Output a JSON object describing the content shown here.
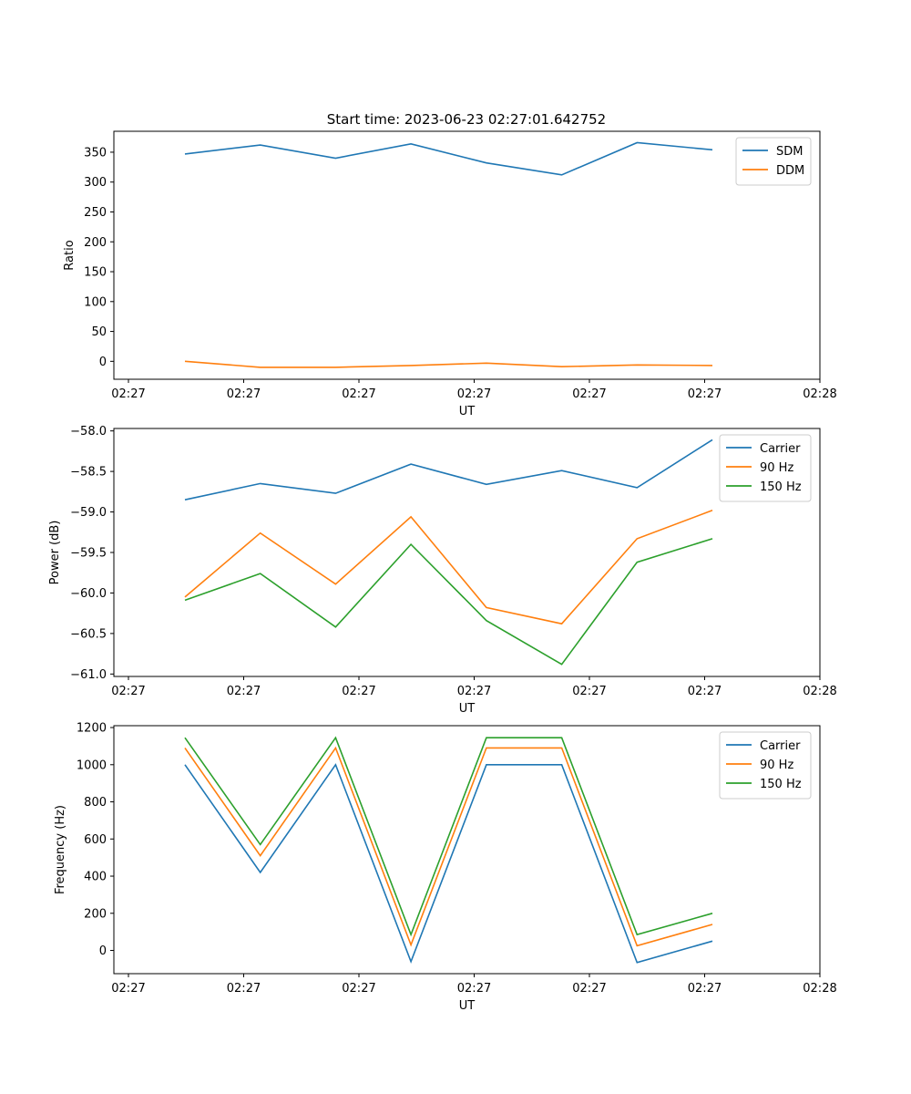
{
  "figure_title": "Start time: 2023-06-23 02:27:01.642752",
  "colors": {
    "blue": "#1f77b4",
    "orange": "#ff7f0e",
    "green": "#2ca02c"
  },
  "x_tick_labels": [
    "02:27",
    "02:27",
    "02:27",
    "02:27",
    "02:27",
    "02:27",
    "02:28"
  ],
  "chart_data": [
    {
      "type": "line",
      "title": "Start time: 2023-06-23 02:27:01.642752",
      "xlabel": "UT",
      "ylabel": "Ratio",
      "ylim": [
        -30,
        385
      ],
      "yticks": [
        0,
        50,
        100,
        150,
        200,
        250,
        300,
        350
      ],
      "legend_position": "upper-right",
      "x": [
        1,
        2,
        3,
        4,
        5,
        6,
        7,
        8
      ],
      "series": [
        {
          "name": "SDM",
          "color": "#1f77b4",
          "values": [
            347,
            362,
            340,
            364,
            332,
            312,
            366,
            354
          ]
        },
        {
          "name": "DDM",
          "color": "#ff7f0e",
          "values": [
            0,
            -10,
            -10,
            -7,
            -3,
            -9,
            -6,
            -7
          ]
        }
      ]
    },
    {
      "type": "line",
      "xlabel": "UT",
      "ylabel": "Power (dB)",
      "ylim": [
        -61.03,
        -57.97
      ],
      "yticks": [
        -61.0,
        -60.5,
        -60.0,
        -59.5,
        -59.0,
        -58.5,
        -58.0
      ],
      "legend_position": "upper-right",
      "x": [
        1,
        2,
        3,
        4,
        5,
        6,
        7,
        8
      ],
      "series": [
        {
          "name": "Carrier",
          "color": "#1f77b4",
          "values": [
            -58.85,
            -58.65,
            -58.77,
            -58.41,
            -58.66,
            -58.49,
            -58.7,
            -58.11
          ]
        },
        {
          "name": "90 Hz",
          "color": "#ff7f0e",
          "values": [
            -60.05,
            -59.26,
            -59.89,
            -59.06,
            -60.18,
            -60.38,
            -59.33,
            -58.98
          ]
        },
        {
          "name": "150 Hz",
          "color": "#2ca02c",
          "values": [
            -60.09,
            -59.76,
            -60.42,
            -59.4,
            -60.34,
            -60.88,
            -59.62,
            -59.33
          ]
        }
      ]
    },
    {
      "type": "line",
      "xlabel": "UT",
      "ylabel": "Frequency (Hz)",
      "ylim": [
        -125,
        1210
      ],
      "yticks": [
        0,
        200,
        400,
        600,
        800,
        1000,
        1200
      ],
      "legend_position": "upper-right",
      "x": [
        1,
        2,
        3,
        4,
        5,
        6,
        7,
        8
      ],
      "series": [
        {
          "name": "Carrier",
          "color": "#1f77b4",
          "values": [
            1000,
            420,
            1000,
            -60,
            1000,
            1000,
            -65,
            50
          ]
        },
        {
          "name": "90 Hz",
          "color": "#ff7f0e",
          "values": [
            1090,
            510,
            1090,
            30,
            1090,
            1090,
            25,
            140
          ]
        },
        {
          "name": "150 Hz",
          "color": "#2ca02c",
          "values": [
            1145,
            570,
            1145,
            85,
            1145,
            1145,
            85,
            200
          ]
        }
      ]
    }
  ]
}
